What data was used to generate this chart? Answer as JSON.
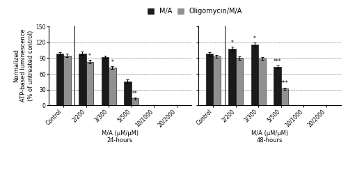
{
  "groups_24h": {
    "labels": [
      "Control",
      "2/200",
      "3/300",
      "5/500",
      "10/1000",
      "20/2000"
    ],
    "MA": [
      98,
      99,
      92,
      46,
      null,
      null
    ],
    "MA_err": [
      3,
      3,
      3,
      3,
      null,
      null
    ],
    "OliMA": [
      95,
      83,
      72,
      13,
      null,
      null
    ],
    "OliMA_err": [
      3,
      3,
      3,
      2,
      null,
      null
    ],
    "MA_sig": [
      "",
      "",
      "",
      "",
      "",
      ""
    ],
    "OliMA_sig": [
      "",
      "*",
      "*",
      "**",
      "",
      ""
    ]
  },
  "groups_48h": {
    "labels": [
      "Control",
      "2/200",
      "3/300",
      "5/500",
      "10/1000",
      "20/2000"
    ],
    "MA": [
      98,
      108,
      116,
      73,
      null,
      null
    ],
    "MA_err": [
      3,
      4,
      4,
      3,
      null,
      null
    ],
    "OliMA": [
      93,
      90,
      89,
      32,
      null,
      null
    ],
    "OliMA_err": [
      3,
      3,
      3,
      2,
      null,
      null
    ],
    "MA_sig": [
      "",
      "*",
      "*",
      "***",
      "",
      ""
    ],
    "OliMA_sig": [
      "",
      "",
      "",
      "***",
      "",
      ""
    ]
  },
  "ylim": [
    0,
    152
  ],
  "yticks": [
    0,
    30,
    60,
    90,
    120,
    150
  ],
  "grid_lines": [
    30,
    60,
    90,
    120
  ],
  "bar_width": 0.32,
  "color_MA": "#1a1a1a",
  "color_OliMA": "#909090",
  "legend_labels": [
    "M/A",
    "Oligomycin/M/A"
  ],
  "ylabel_line1": "Normalized",
  "ylabel_line2": "ATP-based luminescence",
  "ylabel_line3": "(% of untreated control)",
  "xlabel_24h": "M/A (μM/μM)\n24-hours",
  "xlabel_48h": "M/A (μM/μM)\n48-hours",
  "fontsize_ticks": 5.5,
  "fontsize_labels": 6.0,
  "fontsize_legend": 7,
  "fontsize_sig": 5.5
}
